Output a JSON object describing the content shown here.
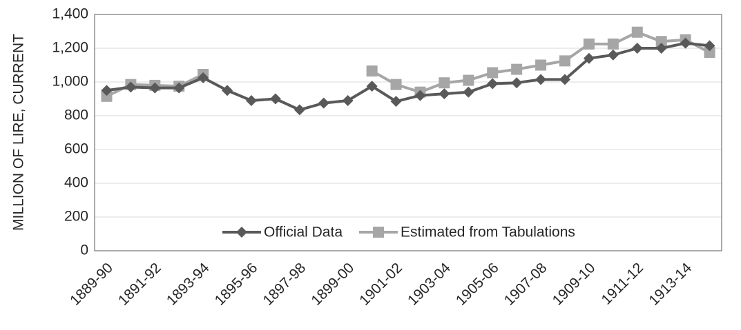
{
  "chart_data": {
    "type": "line",
    "y_label": "MILLION OF LIRE, CURRENT",
    "categories": [
      "1889-90",
      null,
      "1891-92",
      null,
      "1893-94",
      null,
      "1895-96",
      null,
      "1897-98",
      null,
      "1899-00",
      null,
      "1901-02",
      null,
      "1903-04",
      null,
      "1905-06",
      null,
      "1907-08",
      null,
      "1909-10",
      null,
      "1911-12",
      null,
      "1913-14",
      null
    ],
    "series": [
      {
        "name": "Official Data",
        "color": "#595959",
        "marker": "diamond",
        "values": [
          950,
          970,
          965,
          965,
          1025,
          950,
          890,
          900,
          835,
          875,
          890,
          975,
          885,
          920,
          930,
          940,
          990,
          995,
          1015,
          1015,
          1140,
          1160,
          1200,
          1200,
          1230,
          1215
        ]
      },
      {
        "name": "Estimated from Tabulations",
        "color": "#a6a6a6",
        "marker": "square",
        "values": [
          915,
          985,
          980,
          975,
          1045,
          null,
          null,
          null,
          null,
          null,
          null,
          1065,
          985,
          940,
          995,
          1010,
          1055,
          1075,
          1100,
          1125,
          1225,
          1225,
          1295,
          1240,
          1250,
          1175
        ]
      }
    ],
    "ylim": [
      0,
      1400
    ],
    "yticks": [
      0,
      200,
      400,
      600,
      800,
      {
        "value": 1000,
        "label": "1,000"
      },
      {
        "value": 1200,
        "label": "1,200"
      },
      {
        "value": 1400,
        "label": "1,400"
      }
    ],
    "grid": true,
    "legend": "bottom"
  }
}
